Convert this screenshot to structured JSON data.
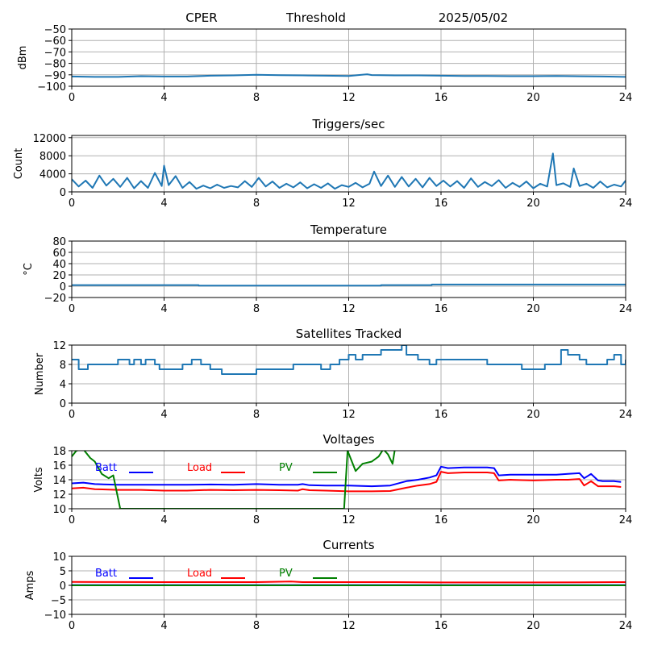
{
  "header": {
    "station": "CPER",
    "mode": "Threshold",
    "date": "2025/05/02"
  },
  "colors": {
    "default_series": "#1f77b4",
    "batt": "#0000ff",
    "load": "#ff0000",
    "pv": "#008000"
  },
  "chart_data": [
    {
      "id": "noise",
      "type": "line",
      "title": "",
      "ylabel": "dBm",
      "xlim": [
        0,
        24
      ],
      "ylim": [
        -100,
        -50
      ],
      "xticks": [
        0,
        4,
        8,
        12,
        16,
        20,
        24
      ],
      "yticks": [
        -100,
        -90,
        -80,
        -70,
        -60,
        -50
      ],
      "yticklabels": [
        "−100",
        "−90",
        "−80",
        "−70",
        "−60",
        "−50"
      ],
      "grid": true,
      "series": [
        {
          "color": "#1f77b4",
          "x": [
            0,
            1,
            2,
            3,
            4,
            5,
            6,
            7,
            8,
            9,
            10,
            11,
            12,
            12.8,
            13,
            14,
            15,
            16,
            17,
            18,
            19,
            20,
            21,
            22,
            23,
            24
          ],
          "y": [
            -91.5,
            -91.8,
            -91.8,
            -91.2,
            -91.5,
            -91.5,
            -90.8,
            -90.5,
            -90.0,
            -90.3,
            -90.5,
            -90.8,
            -91.0,
            -89.5,
            -90.2,
            -90.5,
            -90.5,
            -90.8,
            -91.0,
            -91.0,
            -91.2,
            -91.2,
            -91.0,
            -91.3,
            -91.5,
            -91.8
          ]
        }
      ]
    },
    {
      "id": "triggers",
      "type": "line",
      "title": "Triggers/sec",
      "ylabel": "Count",
      "xlim": [
        0,
        24
      ],
      "ylim": [
        0,
        12500
      ],
      "xticks": [
        0,
        4,
        8,
        12,
        16,
        20,
        24
      ],
      "yticks": [
        0,
        4000,
        8000,
        12000
      ],
      "yticklabels": [
        "0",
        "4000",
        "8000",
        "12000"
      ],
      "grid": true,
      "series": [
        {
          "color": "#1f77b4",
          "x": [
            0,
            0.3,
            0.6,
            0.9,
            1.2,
            1.5,
            1.8,
            2.1,
            2.4,
            2.7,
            3.0,
            3.3,
            3.6,
            3.9,
            4.0,
            4.2,
            4.5,
            4.8,
            5.1,
            5.4,
            5.7,
            6.0,
            6.3,
            6.6,
            6.9,
            7.2,
            7.5,
            7.8,
            8.1,
            8.4,
            8.7,
            9.0,
            9.3,
            9.6,
            9.9,
            10.2,
            10.5,
            10.8,
            11.1,
            11.4,
            11.7,
            12.0,
            12.3,
            12.6,
            12.9,
            13.1,
            13.4,
            13.7,
            14.0,
            14.3,
            14.6,
            14.9,
            15.2,
            15.5,
            15.8,
            16.1,
            16.4,
            16.7,
            17.0,
            17.3,
            17.6,
            17.9,
            18.2,
            18.5,
            18.8,
            19.1,
            19.4,
            19.7,
            20.0,
            20.3,
            20.6,
            20.85,
            21.0,
            21.3,
            21.6,
            21.75,
            22.0,
            22.3,
            22.6,
            22.9,
            23.2,
            23.5,
            23.8,
            24.0
          ],
          "y": [
            2800,
            1200,
            2500,
            900,
            3600,
            1400,
            2900,
            1100,
            3100,
            800,
            2400,
            900,
            4200,
            1300,
            5800,
            1500,
            3500,
            900,
            2200,
            700,
            1400,
            800,
            1600,
            900,
            1300,
            1000,
            2400,
            1100,
            3100,
            1200,
            2300,
            900,
            1800,
            1000,
            2100,
            800,
            1700,
            900,
            1900,
            700,
            1500,
            1100,
            2000,
            1000,
            1800,
            4500,
            1300,
            3600,
            1100,
            3300,
            1200,
            2900,
            1000,
            3100,
            1300,
            2500,
            1200,
            2400,
            900,
            3000,
            1100,
            2200,
            1300,
            2600,
            900,
            2000,
            1100,
            2300,
            800,
            1800,
            1200,
            8500,
            1500,
            1900,
            1100,
            5200,
            1300,
            1800,
            900,
            2300,
            1000,
            1600,
            1200,
            2500
          ]
        }
      ]
    },
    {
      "id": "temperature",
      "type": "line",
      "title": "Temperature",
      "ylabel": "°C",
      "xlim": [
        0,
        24
      ],
      "ylim": [
        -20,
        80
      ],
      "xticks": [
        0,
        4,
        8,
        12,
        16,
        20,
        24
      ],
      "yticks": [
        -20,
        0,
        20,
        40,
        60,
        80
      ],
      "yticklabels": [
        "−20",
        "0",
        "20",
        "40",
        "60",
        "80"
      ],
      "grid": true,
      "series": [
        {
          "color": "#1f77b4",
          "x": [
            0,
            5.5,
            5.5,
            13.4,
            13.4,
            15.6,
            15.6,
            24
          ],
          "y": [
            2,
            2,
            1,
            1,
            2,
            2,
            3,
            3
          ]
        }
      ]
    },
    {
      "id": "satellites",
      "type": "line",
      "title": "Satellites Tracked",
      "ylabel": "Number",
      "xlim": [
        0,
        24
      ],
      "ylim": [
        0,
        12
      ],
      "xticks": [
        0,
        4,
        8,
        12,
        16,
        20,
        24
      ],
      "yticks": [
        0,
        4,
        8,
        12
      ],
      "yticklabels": [
        "0",
        "4",
        "8",
        "12"
      ],
      "grid": true,
      "series": [
        {
          "color": "#1f77b4",
          "step": true,
          "x": [
            0,
            0.3,
            0.7,
            1.8,
            2.0,
            2.5,
            2.7,
            3.0,
            3.2,
            3.6,
            3.8,
            4.8,
            5.2,
            5.6,
            6.0,
            6.2,
            6.5,
            7.0,
            7.5,
            8.0,
            9.2,
            9.6,
            10.1,
            10.3,
            10.8,
            11.2,
            11.6,
            12.0,
            12.3,
            12.6,
            13.0,
            13.4,
            14.3,
            14.5,
            15.0,
            15.5,
            15.8,
            17.0,
            18.0,
            18.5,
            19.5,
            20.0,
            20.5,
            20.9,
            21.2,
            21.5,
            22.0,
            22.3,
            22.7,
            23.2,
            23.5,
            23.8,
            24.0
          ],
          "y": [
            9,
            7,
            8,
            8,
            9,
            8,
            9,
            8,
            9,
            8,
            7,
            8,
            9,
            8,
            7,
            7,
            6,
            6,
            6,
            7,
            7,
            8,
            8,
            8,
            7,
            8,
            9,
            10,
            9,
            10,
            10,
            11,
            12,
            10,
            9,
            8,
            9,
            9,
            8,
            8,
            7,
            7,
            8,
            8,
            11,
            10,
            9,
            8,
            8,
            9,
            10,
            8,
            9
          ]
        }
      ]
    },
    {
      "id": "voltages",
      "type": "line",
      "title": "Voltages",
      "ylabel": "Volts",
      "xlim": [
        0,
        24
      ],
      "ylim": [
        10,
        18
      ],
      "xticks": [
        0,
        4,
        8,
        12,
        16,
        20,
        24
      ],
      "yticks": [
        10,
        12,
        14,
        16,
        18
      ],
      "yticklabels": [
        "10",
        "12",
        "14",
        "16",
        "18"
      ],
      "grid": true,
      "series": [
        {
          "name": "Batt",
          "color": "#0000ff",
          "x": [
            0,
            0.5,
            1.0,
            2.0,
            3.0,
            4.0,
            5.0,
            6.0,
            7.0,
            8.0,
            9.0,
            9.8,
            10.0,
            10.3,
            11.0,
            12.0,
            13.0,
            13.8,
            14.5,
            15.0,
            15.5,
            15.8,
            16.0,
            16.3,
            17.0,
            18.0,
            18.3,
            18.5,
            19.0,
            20.0,
            21.0,
            21.5,
            22.0,
            22.2,
            22.5,
            22.8,
            23.0,
            23.5,
            23.8
          ],
          "y": [
            13.5,
            13.6,
            13.4,
            13.3,
            13.3,
            13.3,
            13.3,
            13.35,
            13.3,
            13.4,
            13.3,
            13.3,
            13.4,
            13.25,
            13.2,
            13.2,
            13.1,
            13.2,
            13.8,
            14.0,
            14.3,
            14.6,
            15.8,
            15.6,
            15.7,
            15.7,
            15.6,
            14.6,
            14.7,
            14.7,
            14.7,
            14.8,
            14.9,
            14.2,
            14.8,
            13.9,
            13.8,
            13.8,
            13.7
          ]
        },
        {
          "name": "Load",
          "color": "#ff0000",
          "x": [
            0,
            0.5,
            1.0,
            2.0,
            3.0,
            4.0,
            5.0,
            6.0,
            7.0,
            8.0,
            9.0,
            9.8,
            10.0,
            10.3,
            11.0,
            12.0,
            13.0,
            13.8,
            14.5,
            15.0,
            15.5,
            15.8,
            16.0,
            16.3,
            17.0,
            18.0,
            18.3,
            18.5,
            19.0,
            20.0,
            21.0,
            21.5,
            22.0,
            22.2,
            22.5,
            22.8,
            23.0,
            23.5,
            23.8
          ],
          "y": [
            12.8,
            12.9,
            12.7,
            12.6,
            12.6,
            12.5,
            12.5,
            12.6,
            12.55,
            12.6,
            12.55,
            12.5,
            12.7,
            12.55,
            12.5,
            12.4,
            12.4,
            12.45,
            12.9,
            13.2,
            13.4,
            13.7,
            15.1,
            14.9,
            15.0,
            15.0,
            14.9,
            13.9,
            14.0,
            13.9,
            14.0,
            14.0,
            14.1,
            13.2,
            13.8,
            13.1,
            13.1,
            13.1,
            13.0
          ]
        },
        {
          "name": "PV",
          "color": "#008000",
          "x": [
            0,
            0.2,
            0.5,
            0.8,
            1.0,
            1.3,
            1.6,
            1.8,
            2.0,
            2.1,
            11.8,
            11.95,
            12.3,
            12.6,
            13.0,
            13.3,
            13.5,
            13.7,
            13.9,
            14.0
          ],
          "y": [
            17.2,
            18.0,
            18.2,
            17.0,
            16.5,
            14.8,
            14.2,
            14.6,
            11.5,
            10.0,
            10.0,
            18.0,
            15.2,
            16.2,
            16.5,
            17.2,
            18.2,
            17.5,
            16.2,
            18.2
          ]
        }
      ],
      "legend": [
        "Batt",
        "Load",
        "PV"
      ],
      "legend_placement": "top"
    },
    {
      "id": "currents",
      "type": "line",
      "title": "Currents",
      "ylabel": "Amps",
      "xlim": [
        0,
        24
      ],
      "ylim": [
        -10,
        10
      ],
      "xticks": [
        0,
        4,
        8,
        12,
        16,
        20,
        24
      ],
      "yticks": [
        -10,
        -5,
        0,
        5,
        10
      ],
      "yticklabels": [
        "−10",
        "−5",
        "0",
        "5",
        "10"
      ],
      "grid": true,
      "series": [
        {
          "name": "Batt",
          "color": "#0000ff",
          "x": [
            0,
            24
          ],
          "y": [
            0.1,
            0.1
          ]
        },
        {
          "name": "Load",
          "color": "#ff0000",
          "x": [
            0,
            2,
            4,
            6,
            8,
            9.5,
            10,
            12,
            14,
            16,
            18,
            20,
            22,
            24
          ],
          "y": [
            1.2,
            1.15,
            1.1,
            1.1,
            1.1,
            1.3,
            1.1,
            1.1,
            1.1,
            1.0,
            1.0,
            1.0,
            1.05,
            1.1
          ]
        },
        {
          "name": "PV",
          "color": "#008000",
          "x": [
            0,
            24
          ],
          "y": [
            0,
            0
          ]
        }
      ],
      "legend": [
        "Batt",
        "Load",
        "PV"
      ],
      "legend_placement": "top"
    }
  ]
}
